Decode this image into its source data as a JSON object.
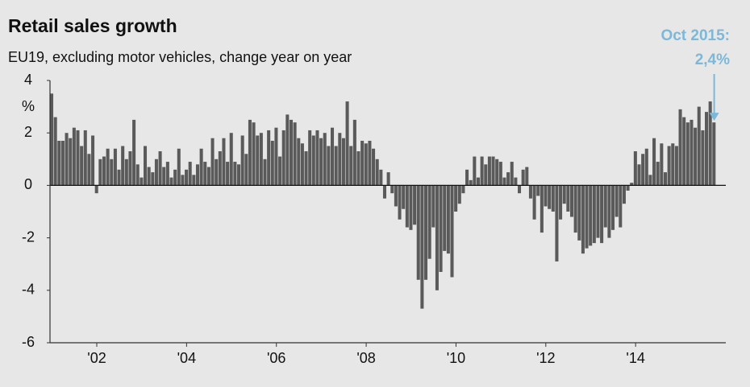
{
  "chart_data": {
    "type": "bar",
    "title": "Retail sales growth",
    "subtitle": "EU19, excluding motor vehicles, change year on year",
    "y_unit": "%",
    "annotations": [
      "Oct 2015:",
      "2,4%"
    ],
    "color": "#5a5a5a",
    "annotation_color": "#7cb8d8",
    "ylim": [
      -6,
      4
    ],
    "yticks": [
      -6,
      -4,
      -2,
      0,
      2,
      4
    ],
    "grid": false,
    "categories": [
      null,
      null,
      null,
      null,
      null,
      null,
      null,
      null,
      null,
      null,
      null,
      null,
      "'02",
      null,
      null,
      null,
      null,
      null,
      null,
      null,
      null,
      null,
      null,
      null,
      null,
      null,
      null,
      null,
      null,
      null,
      null,
      null,
      null,
      null,
      null,
      null,
      "'04",
      null,
      null,
      null,
      null,
      null,
      null,
      null,
      null,
      null,
      null,
      null,
      null,
      null,
      null,
      null,
      null,
      null,
      null,
      null,
      null,
      null,
      null,
      null,
      "'06",
      null,
      null,
      null,
      null,
      null,
      null,
      null,
      null,
      null,
      null,
      null,
      null,
      null,
      null,
      null,
      null,
      null,
      null,
      null,
      null,
      null,
      null,
      null,
      "'08",
      null,
      null,
      null,
      null,
      null,
      null,
      null,
      null,
      null,
      null,
      null,
      null,
      null,
      null,
      null,
      null,
      null,
      null,
      null,
      null,
      null,
      null,
      null,
      "'10",
      null,
      null,
      null,
      null,
      null,
      null,
      null,
      null,
      null,
      null,
      null,
      null,
      null,
      null,
      null,
      null,
      null,
      null,
      null,
      null,
      null,
      null,
      null,
      "'12",
      null,
      null,
      null,
      null,
      null,
      null,
      null,
      null,
      null,
      null,
      null,
      null,
      null,
      null,
      null,
      null,
      null,
      null,
      null,
      null,
      null,
      null,
      null,
      "'14",
      null,
      null,
      null,
      null,
      null,
      null,
      null,
      null,
      null,
      null,
      null,
      null,
      null,
      null,
      null,
      null,
      null,
      null,
      null,
      null,
      null
    ],
    "values": [
      3.5,
      2.6,
      1.7,
      1.7,
      2.0,
      1.8,
      2.2,
      2.1,
      1.5,
      2.1,
      1.2,
      1.9,
      -0.3,
      1.0,
      1.1,
      1.4,
      1.0,
      1.4,
      0.6,
      1.5,
      1.0,
      1.3,
      2.5,
      0.8,
      0.3,
      1.5,
      0.7,
      0.5,
      1.0,
      1.3,
      0.7,
      0.9,
      0.3,
      0.6,
      1.4,
      0.4,
      0.6,
      0.9,
      0.4,
      0.8,
      1.4,
      0.9,
      0.7,
      1.8,
      1.0,
      1.3,
      1.8,
      0.9,
      2.0,
      0.9,
      0.8,
      1.9,
      1.2,
      2.5,
      2.4,
      1.9,
      2.0,
      1.0,
      2.1,
      1.7,
      2.2,
      1.1,
      2.1,
      2.7,
      2.5,
      2.4,
      1.8,
      1.6,
      1.3,
      2.1,
      1.9,
      2.1,
      1.8,
      2.0,
      1.5,
      2.2,
      1.5,
      2.0,
      1.8,
      3.2,
      1.5,
      2.5,
      1.3,
      1.7,
      1.6,
      1.7,
      1.4,
      1.0,
      0.6,
      -0.5,
      0.5,
      -0.3,
      -0.8,
      -1.3,
      -0.9,
      -1.6,
      -1.7,
      -1.5,
      -3.6,
      -4.7,
      -3.6,
      -2.8,
      -1.6,
      -4.0,
      -3.3,
      -2.5,
      -2.6,
      -3.5,
      -1.0,
      -0.7,
      -0.3,
      0.6,
      0.2,
      1.1,
      0.3,
      1.1,
      0.8,
      1.1,
      1.1,
      1.0,
      0.9,
      0.3,
      0.5,
      0.9,
      0.3,
      -0.3,
      0.6,
      0.7,
      -0.5,
      -1.3,
      -0.4,
      -1.8,
      -0.8,
      -0.9,
      -1.0,
      -2.9,
      -1.3,
      -0.7,
      -1.0,
      -1.2,
      -1.8,
      -2.1,
      -2.6,
      -2.4,
      -2.3,
      -2.2,
      -2.0,
      -2.2,
      -1.6,
      -2.0,
      -1.7,
      -1.2,
      -1.6,
      -0.7,
      -0.2,
      0.1,
      1.3,
      0.8,
      1.2,
      1.4,
      0.4,
      1.8,
      0.9,
      1.6,
      0.5,
      1.5,
      1.6,
      1.5,
      2.9,
      2.6,
      2.4,
      2.5,
      2.2,
      3.0,
      2.1,
      2.8,
      3.2,
      2.4
    ]
  }
}
